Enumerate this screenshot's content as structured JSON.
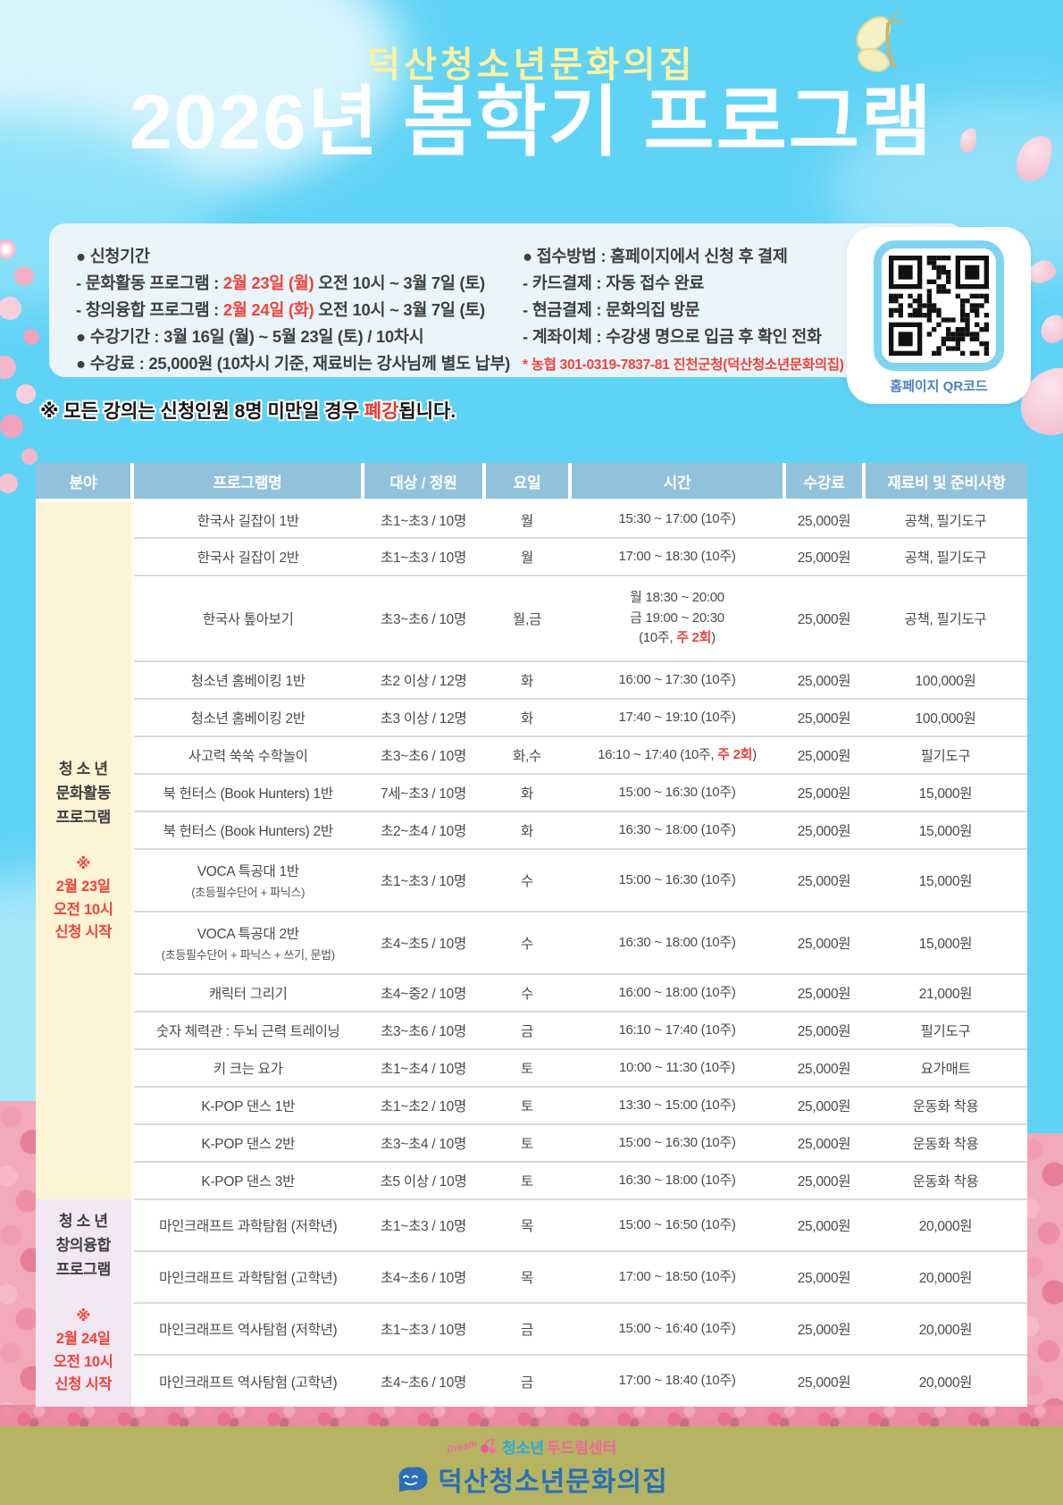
{
  "colors": {
    "sky": "#5FD3F6",
    "panel_bg": "#EAF5FB",
    "qr_border": "#7FD4F1",
    "header_blue": "#92C1DC",
    "accent_red": "#F0433A",
    "table_red": "#E73A2E",
    "text_dark": "#3F3F3F",
    "title_yellow": "#FBF2A2",
    "label_blue": "#4A7FC5",
    "footer_olive": "#B6B363",
    "logo_blue": "#2670B6",
    "logo_cyan": "#2BA9E1",
    "logo_pink": "#F0679E"
  },
  "header": {
    "org": "덕산청소년문화의집",
    "title": "2026년 봄학기 프로그램"
  },
  "info": {
    "left": {
      "heading": "● 신청기간",
      "line1_pre": "- 문화활동 프로그램 : ",
      "line1_red": "2월 23일 (월)",
      "line1_post": " 오전 10시 ~ 3월 7일 (토)",
      "line2_pre": "- 창의융합 프로그램 : ",
      "line2_red": "2월 24일 (화)",
      "line2_post": " 오전 10시 ~ 3월 7일 (토)",
      "line3": "● 수강기간 : 3월 16일 (월) ~ 5월 23일 (토) /  10차시",
      "line4": "● 수강료 : 25,000원 (10차시 기준, 재료비는 강사님께 별도 납부)"
    },
    "right": {
      "heading": "● 접수방법 : 홈페이지에서 신청 후 결제",
      "item1_label": "- 카드결제",
      "item1_text": " : 자동 접수 완료",
      "item2_label": "- 현금결제",
      "item2_text": " : 문화의집 방문",
      "item3_label": "- 계좌이체",
      "item3_text": " : 수강생 명으로 입금 후 확인 전화",
      "account": "* 농협 301-0319-7837-81 진천군청(덕산청소년문화의집)"
    },
    "qr_label": "홈페이지 QR코드"
  },
  "notice": {
    "pre": "※ 모든 강의는 신청인원 8명 미만일 경우 ",
    "red_word": "폐강",
    "post": "됩니다."
  },
  "table": {
    "headers": [
      "분야",
      "프로그램명",
      "대상 / 정원",
      "요일",
      "시간",
      "수강료",
      "재료비 및 준비사항"
    ],
    "groups": [
      {
        "bg": "#FDF4D6",
        "name_lines": [
          "청 소 년",
          "문화활동",
          "프로그램"
        ],
        "note_lines": [
          "※",
          "2월 23일",
          "오전 10시",
          "신청 시작"
        ],
        "rows": [
          {
            "name": "한국사 길잡이 1반",
            "target": "초1~초3 / 10명",
            "day": "월",
            "time": [
              {
                "t": "15:30 ~ 17:00 (10주)"
              }
            ],
            "fee": "25,000원",
            "materials": "공책, 필기도구"
          },
          {
            "name": "한국사 길잡이 2반",
            "target": "초1~초3 / 10명",
            "day": "월",
            "time": [
              {
                "t": "17:00 ~ 18:30 (10주)"
              }
            ],
            "fee": "25,000원",
            "materials": "공책, 필기도구"
          },
          {
            "name": "한국사 톺아보기",
            "target": "초3~초6 / 10명",
            "day": "월,금",
            "time": [
              {
                "t": "월 18:30 ~ 20:00"
              },
              {
                "t": "금 19:00 ~ 20:30"
              },
              {
                "t": "(10주, ",
                "red": "주 2회",
                "t2": ")"
              }
            ],
            "fee": "25,000원",
            "materials": "공책, 필기도구"
          },
          {
            "name": "청소년 홈베이킹 1반",
            "target": "초2 이상 / 12명",
            "day": "화",
            "time": [
              {
                "t": "16:00 ~ 17:30 (10주)"
              }
            ],
            "fee": "25,000원",
            "materials": "100,000원"
          },
          {
            "name": "청소년 홈베이킹 2반",
            "target": "초3 이상 / 12명",
            "day": "화",
            "time": [
              {
                "t": "17:40 ~ 19:10 (10주)"
              }
            ],
            "fee": "25,000원",
            "materials": "100,000원"
          },
          {
            "name": "사고력 쑥쑥 수학놀이",
            "target": "초3~초6 / 10명",
            "day": "화,수",
            "time": [
              {
                "t": "16:10 ~ 17:40 (10주, ",
                "red": "주 2회",
                "t2": ")"
              }
            ],
            "fee": "25,000원",
            "materials": "필기도구"
          },
          {
            "name": "북 헌터스 (Book Hunters) 1반",
            "target": "7세~초3 / 10명",
            "day": "화",
            "time": [
              {
                "t": "15:00 ~ 16:30 (10주)"
              }
            ],
            "fee": "25,000원",
            "materials": "15,000원"
          },
          {
            "name": "북 헌터스 (Book Hunters) 2반",
            "target": "초2~초4 / 10명",
            "day": "화",
            "time": [
              {
                "t": "16:30 ~ 18:00 (10주)"
              }
            ],
            "fee": "25,000원",
            "materials": "15,000원"
          },
          {
            "name": "VOCA 특공대 1반",
            "sub": "(초등필수단어 + 파닉스)",
            "target": "초1~초3 / 10명",
            "day": "수",
            "time": [
              {
                "t": "15:00 ~ 16:30 (10주)"
              }
            ],
            "fee": "25,000원",
            "materials": "15,000원"
          },
          {
            "name": "VOCA 특공대 2반",
            "sub": "(초등필수단어 + 파닉스 + 쓰기, 문법)",
            "target": "초4~초5 / 10명",
            "day": "수",
            "time": [
              {
                "t": "16:30 ~ 18:00 (10주)"
              }
            ],
            "fee": "25,000원",
            "materials": "15,000원"
          },
          {
            "name": "캐릭터 그리기",
            "target": "초4~중2 / 10명",
            "day": "수",
            "time": [
              {
                "t": "16:00 ~ 18:00 (10주)"
              }
            ],
            "fee": "25,000원",
            "materials": "21,000원"
          },
          {
            "name": "숫자 체력관 : 두뇌 근력 트레이닝",
            "target": "초3~초6 / 10명",
            "day": "금",
            "time": [
              {
                "t": "16:10 ~ 17:40 (10주)"
              }
            ],
            "fee": "25,000원",
            "materials": "필기도구"
          },
          {
            "name": "키 크는 요가",
            "target": "초1~초4 / 10명",
            "day": "토",
            "time": [
              {
                "t": "10:00 ~ 11:30 (10주)"
              }
            ],
            "fee": "25,000원",
            "materials": "요가매트"
          },
          {
            "name": "K-POP 댄스 1반",
            "target": "초1~초2 / 10명",
            "day": "토",
            "time": [
              {
                "t": "13:30 ~ 15:00 (10주)"
              }
            ],
            "fee": "25,000원",
            "materials": "운동화 착용"
          },
          {
            "name": "K-POP 댄스 2반",
            "target": "초3~초4 / 10명",
            "day": "토",
            "time": [
              {
                "t": "15:00 ~ 16:30 (10주)"
              }
            ],
            "fee": "25,000원",
            "materials": "운동화 착용"
          },
          {
            "name": "K-POP 댄스 3반",
            "target": "초5 이상 / 10명",
            "day": "토",
            "time": [
              {
                "t": "16:30 ~ 18:00 (10주)"
              }
            ],
            "fee": "25,000원",
            "materials": "운동화 착용"
          }
        ]
      },
      {
        "bg": "#F2E7F2",
        "name_lines": [
          "청 소 년",
          "창의융합",
          "프로그램"
        ],
        "note_lines": [
          "※",
          "2월 24일",
          "오전 10시",
          "신청 시작"
        ],
        "rows": [
          {
            "name": "마인크래프트 과학탐험 (저학년)",
            "target": "초1~초3 / 10명",
            "day": "목",
            "time": [
              {
                "t": "15:00 ~ 16:50 (10주)"
              }
            ],
            "fee": "25,000원",
            "materials": "20,000원"
          },
          {
            "name": "마인크래프트 과학탐험 (고학년)",
            "target": "초4~초6 / 10명",
            "day": "목",
            "time": [
              {
                "t": "17:00 ~ 18:50 (10주)"
              }
            ],
            "fee": "25,000원",
            "materials": "20,000원"
          },
          {
            "name": "마인크래프트 역사탐험 (저학년)",
            "target": "초1~초3 / 10명",
            "day": "금",
            "time": [
              {
                "t": "15:00 ~ 16:40 (10주)"
              }
            ],
            "fee": "25,000원",
            "materials": "20,000원"
          },
          {
            "name": "마인크래프트 역사탐험 (고학년)",
            "target": "초4~초6 / 10명",
            "day": "금",
            "time": [
              {
                "t": "17:00 ~ 18:40 (10주)"
              }
            ],
            "fee": "25,000원",
            "materials": "20,000원"
          }
        ]
      }
    ]
  },
  "footer": {
    "dream": "Dream",
    "logo1_a": "청소년",
    "logo1_b": "두드림센터",
    "logo2": "덕산청소년문화의집"
  }
}
